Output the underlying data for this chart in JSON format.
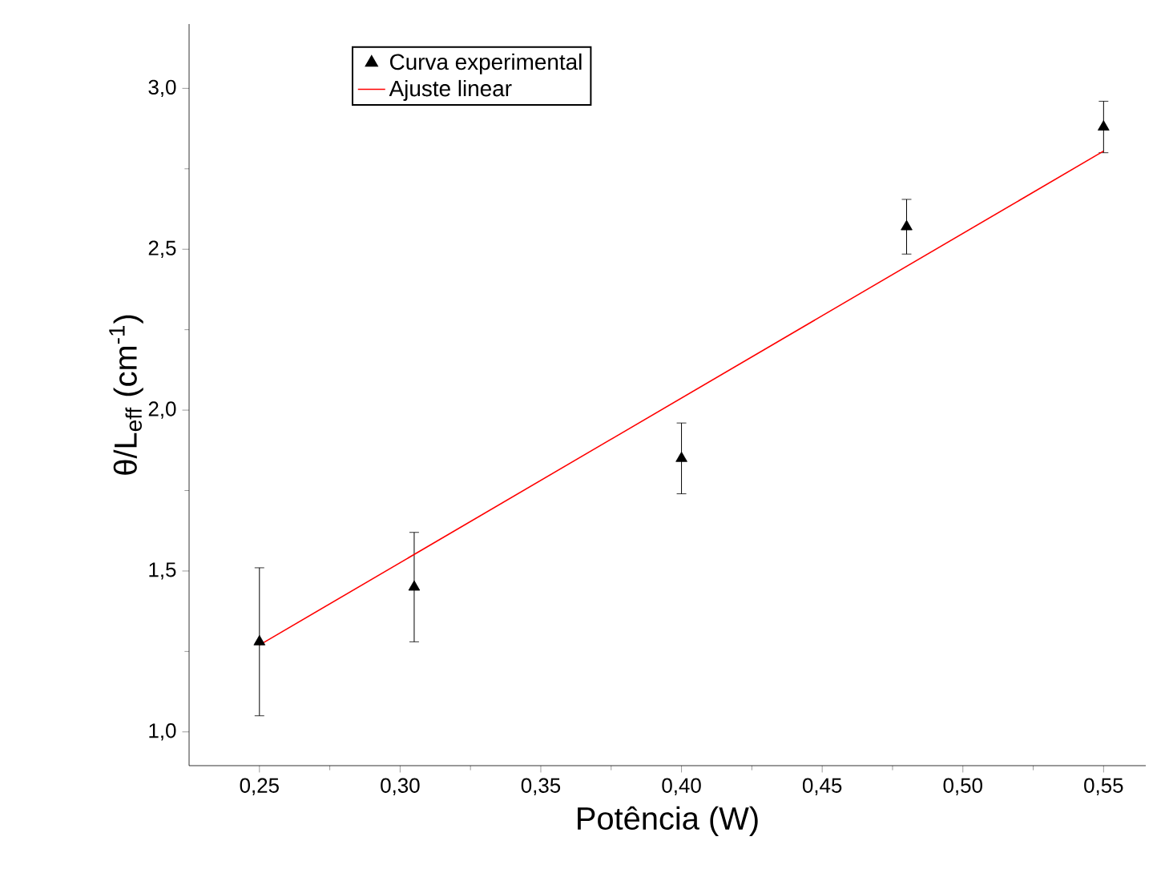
{
  "chart_data": {
    "type": "scatter",
    "xlabel": "Potência (W)",
    "ylabel": "θ/L$_{eff}$ (cm$^{-1}$)",
    "xlim": [
      0.225,
      0.565
    ],
    "ylim": [
      0.895,
      3.2
    ],
    "xticks": [
      {
        "value": 0.25,
        "label": "0,25"
      },
      {
        "value": 0.3,
        "label": "0,30"
      },
      {
        "value": 0.35,
        "label": "0,35"
      },
      {
        "value": 0.4,
        "label": "0,40"
      },
      {
        "value": 0.45,
        "label": "0,45"
      },
      {
        "value": 0.5,
        "label": "0,50"
      },
      {
        "value": 0.55,
        "label": "0,55"
      }
    ],
    "yticks": [
      {
        "value": 1.0,
        "label": "1,0"
      },
      {
        "value": 1.5,
        "label": "1,5"
      },
      {
        "value": 2.0,
        "label": "2,0"
      },
      {
        "value": 2.5,
        "label": "2,5"
      },
      {
        "value": 3.0,
        "label": "3,0"
      }
    ],
    "legend": "top left",
    "grid": false,
    "series": [
      {
        "name": "Curva experimental",
        "marker": "triangle",
        "color": "#000000",
        "x": [
          0.25,
          0.305,
          0.4,
          0.48,
          0.55
        ],
        "values": [
          1.28,
          1.45,
          1.85,
          2.57,
          2.88
        ],
        "errors": [
          0.23,
          0.17,
          0.11,
          0.085,
          0.08
        ]
      },
      {
        "name": "Ajuste linear",
        "type": "line",
        "marker": "none",
        "line_style": "solid",
        "color": "#ff0000",
        "x": [
          0.25,
          0.55
        ],
        "values": [
          1.27,
          2.805
        ]
      }
    ]
  }
}
